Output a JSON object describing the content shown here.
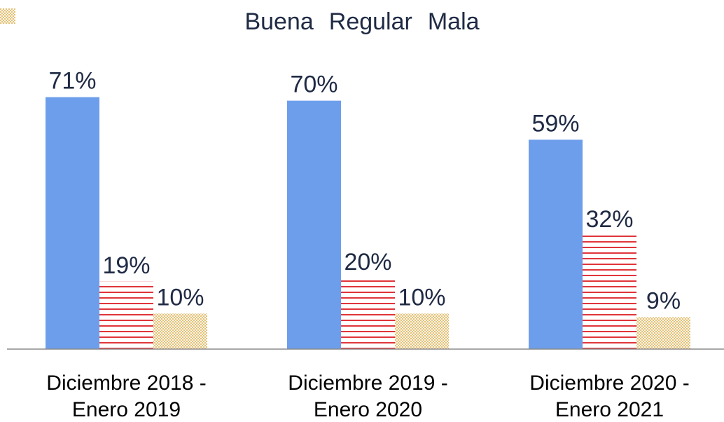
{
  "chart_data": {
    "type": "bar",
    "categories": [
      "Diciembre 2018 - Enero 2019",
      "Diciembre 2019 - Enero 2020",
      "Diciembre 2020 - Enero 2021"
    ],
    "series": [
      {
        "name": "Buena",
        "color": "#6d9eeb",
        "pattern": "solid",
        "values": [
          71,
          70,
          59
        ],
        "value_labels": [
          "71%",
          "70%",
          "59%"
        ]
      },
      {
        "name": "Regular",
        "color": "#e0353a",
        "pattern": "horizontal-stripes",
        "values": [
          19,
          20,
          32
        ],
        "value_labels": [
          "19%",
          "20%",
          "32%"
        ]
      },
      {
        "name": "Mala",
        "color": "#e3c17a",
        "pattern": "dots",
        "values": [
          10,
          10,
          9
        ],
        "value_labels": [
          "10%",
          "10%",
          "9%"
        ]
      }
    ],
    "ylim": [
      0,
      80
    ],
    "legend": "top",
    "grid": false
  }
}
